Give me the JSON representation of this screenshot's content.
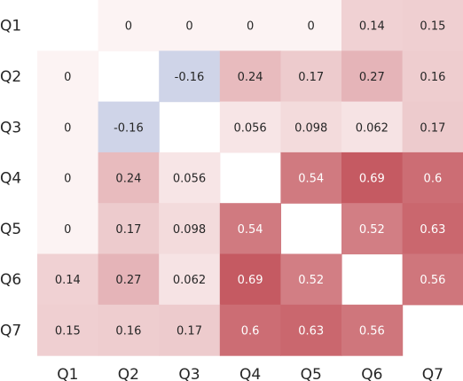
{
  "chart_data": {
    "type": "heatmap",
    "title": "",
    "xlabel": "",
    "ylabel": "",
    "x_categories": [
      "Q1",
      "Q2",
      "Q3",
      "Q4",
      "Q5",
      "Q6",
      "Q7"
    ],
    "y_categories": [
      "Q1",
      "Q2",
      "Q3",
      "Q4",
      "Q5",
      "Q6",
      "Q7"
    ],
    "values": [
      [
        null,
        0,
        0,
        0,
        0,
        0.14,
        0.15
      ],
      [
        0,
        null,
        -0.16,
        0.24,
        0.17,
        0.27,
        0.16
      ],
      [
        0,
        -0.16,
        null,
        0.056,
        0.098,
        0.062,
        0.17
      ],
      [
        0,
        0.24,
        0.056,
        null,
        0.54,
        0.69,
        0.6
      ],
      [
        0,
        0.17,
        0.098,
        0.54,
        null,
        0.52,
        0.63
      ],
      [
        0.14,
        0.27,
        0.062,
        0.69,
        0.52,
        null,
        0.56
      ],
      [
        0.15,
        0.16,
        0.17,
        0.6,
        0.63,
        0.56,
        null
      ]
    ],
    "cell_labels": [
      [
        null,
        "0",
        "0",
        "0",
        "0",
        "0.14",
        "0.15"
      ],
      [
        "0",
        null,
        "-0.16",
        "0.24",
        "0.17",
        "0.27",
        "0.16"
      ],
      [
        "0",
        "-0.16",
        null,
        "0.056",
        "0.098",
        "0.062",
        "0.17"
      ],
      [
        "0",
        "0.24",
        "0.056",
        null,
        "0.54",
        "0.69",
        "0.6"
      ],
      [
        "0",
        "0.17",
        "0.098",
        "0.54",
        null,
        "0.52",
        "0.63"
      ],
      [
        "0.14",
        "0.27",
        "0.062",
        "0.69",
        "0.52",
        null,
        "0.56"
      ],
      [
        "0.15",
        "0.16",
        "0.17",
        "0.6",
        "0.63",
        "0.56",
        null
      ]
    ],
    "colormap": {
      "negative": "#cfd4e8",
      "zero": "#fcf3f3",
      "positive": "#c55a62",
      "vmin": -0.69,
      "vmax": 0.69,
      "text_color": "#262626"
    },
    "diagonal": "blank",
    "colorbar": false
  }
}
